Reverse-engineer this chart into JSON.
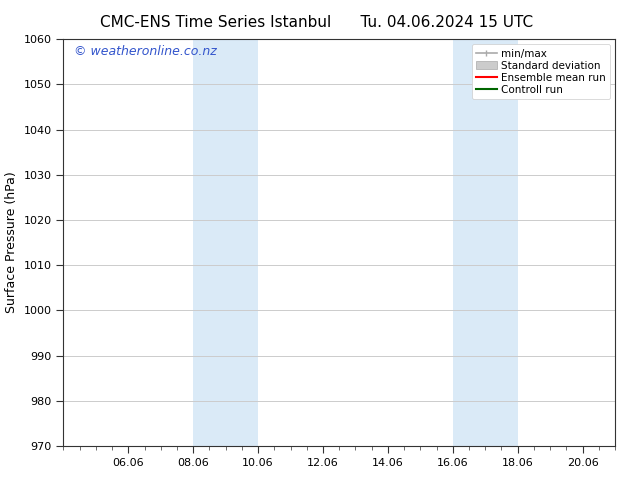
{
  "title": "CMC-ENS Time Series Istanbul",
  "title2": "Tu. 04.06.2024 15 UTC",
  "ylabel": "Surface Pressure (hPa)",
  "ylim": [
    970,
    1060
  ],
  "yticks": [
    970,
    980,
    990,
    1000,
    1010,
    1020,
    1030,
    1040,
    1050,
    1060
  ],
  "xtick_labels": [
    "06.06",
    "08.06",
    "10.06",
    "12.06",
    "14.06",
    "16.06",
    "18.06",
    "20.06"
  ],
  "xtick_positions": [
    2,
    4,
    6,
    8,
    10,
    12,
    14,
    16
  ],
  "xlim": [
    0,
    17
  ],
  "shade_bands": [
    {
      "x_start": 4,
      "x_end": 6
    },
    {
      "x_start": 12,
      "x_end": 14
    }
  ],
  "shade_color": "#daeaf7",
  "background_color": "#ffffff",
  "grid_color": "#cccccc",
  "watermark_text": "© weatheronline.co.nz",
  "watermark_color": "#3355cc",
  "legend_items": [
    {
      "label": "min/max",
      "color": "#aaaaaa",
      "style": "minmax"
    },
    {
      "label": "Standard deviation",
      "color": "#bbbbbb",
      "style": "bar"
    },
    {
      "label": "Ensemble mean run",
      "color": "#ff0000",
      "style": "line"
    },
    {
      "label": "Controll run",
      "color": "#006600",
      "style": "line"
    }
  ],
  "font_size_title": 11,
  "font_size_axis": 9,
  "font_size_tick": 8,
  "font_size_legend": 7.5,
  "font_size_watermark": 9
}
